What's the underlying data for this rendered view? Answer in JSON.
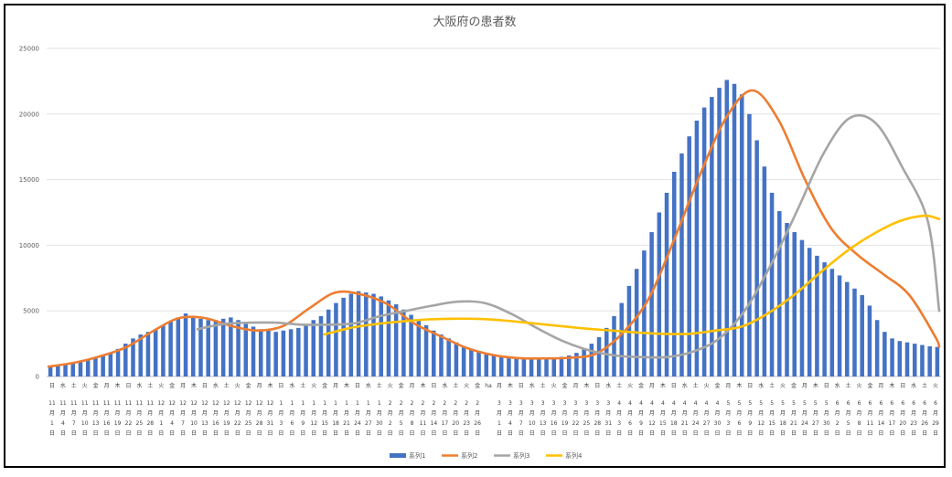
{
  "chart_data": {
    "type": "bar",
    "title": "大阪府の患者数",
    "ylim": [
      0,
      25000
    ],
    "y_ticks": [
      0,
      5000,
      10000,
      15000,
      20000,
      25000
    ],
    "grid": "horizontal",
    "legend_position": "bottom",
    "x_tick_labels": [
      {
        "day": "日",
        "label": "11月1日"
      },
      {
        "day": "水",
        "label": "11月4日"
      },
      {
        "day": "土",
        "label": "11月7日"
      },
      {
        "day": "火",
        "label": "11月10日"
      },
      {
        "day": "金",
        "label": "11月13日"
      },
      {
        "day": "月",
        "label": "11月16日"
      },
      {
        "day": "木",
        "label": "11月19日"
      },
      {
        "day": "日",
        "label": "11月22日"
      },
      {
        "day": "水",
        "label": "11月25日"
      },
      {
        "day": "土",
        "label": "11月28日"
      },
      {
        "day": "火",
        "label": "12月1日"
      },
      {
        "day": "金",
        "label": "12月4日"
      },
      {
        "day": "月",
        "label": "12月7日"
      },
      {
        "day": "木",
        "label": "12月10日"
      },
      {
        "day": "日",
        "label": "12月13日"
      },
      {
        "day": "水",
        "label": "12月16日"
      },
      {
        "day": "土",
        "label": "12月19日"
      },
      {
        "day": "火",
        "label": "12月22日"
      },
      {
        "day": "金",
        "label": "12月25日"
      },
      {
        "day": "月",
        "label": "12月28日"
      },
      {
        "day": "木",
        "label": "12月31日"
      },
      {
        "day": "日",
        "label": "1月3日"
      },
      {
        "day": "水",
        "label": "1月6日"
      },
      {
        "day": "土",
        "label": "1月9日"
      },
      {
        "day": "火",
        "label": "1月12日"
      },
      {
        "day": "金",
        "label": "1月15日"
      },
      {
        "day": "月",
        "label": "1月18日"
      },
      {
        "day": "木",
        "label": "1月21日"
      },
      {
        "day": "日",
        "label": "1月24日"
      },
      {
        "day": "水",
        "label": "1月27日"
      },
      {
        "day": "土",
        "label": "1月30日"
      },
      {
        "day": "火",
        "label": "2月2日"
      },
      {
        "day": "金",
        "label": "2月5日"
      },
      {
        "day": "月",
        "label": "2月8日"
      },
      {
        "day": "木",
        "label": "2月11日"
      },
      {
        "day": "日",
        "label": "2月14日"
      },
      {
        "day": "水",
        "label": "2月17日"
      },
      {
        "day": "土",
        "label": "2月20日"
      },
      {
        "day": "火",
        "label": "2月23日"
      },
      {
        "day": "金",
        "label": "2月26日"
      },
      {
        "day": "ha",
        "label": ""
      },
      {
        "day": "月",
        "label": "3月1日"
      },
      {
        "day": "木",
        "label": "3月4日"
      },
      {
        "day": "日",
        "label": "3月7日"
      },
      {
        "day": "水",
        "label": "3月10日"
      },
      {
        "day": "土",
        "label": "3月13日"
      },
      {
        "day": "火",
        "label": "3月16日"
      },
      {
        "day": "金",
        "label": "3月19日"
      },
      {
        "day": "月",
        "label": "3月22日"
      },
      {
        "day": "木",
        "label": "3月25日"
      },
      {
        "day": "日",
        "label": "3月28日"
      },
      {
        "day": "水",
        "label": "3月31日"
      },
      {
        "day": "土",
        "label": "4月3日"
      },
      {
        "day": "火",
        "label": "4月6日"
      },
      {
        "day": "金",
        "label": "4月9日"
      },
      {
        "day": "月",
        "label": "4月12日"
      },
      {
        "day": "木",
        "label": "4月15日"
      },
      {
        "day": "日",
        "label": "4月18日"
      },
      {
        "day": "水",
        "label": "4月21日"
      },
      {
        "day": "土",
        "label": "4月24日"
      },
      {
        "day": "火",
        "label": "4月27日"
      },
      {
        "day": "金",
        "label": "4月30日"
      },
      {
        "day": "月",
        "label": "5月3日"
      },
      {
        "day": "木",
        "label": "5月6日"
      },
      {
        "day": "日",
        "label": "5月9日"
      },
      {
        "day": "水",
        "label": "5月12日"
      },
      {
        "day": "土",
        "label": "5月15日"
      },
      {
        "day": "火",
        "label": "5月18日"
      },
      {
        "day": "金",
        "label": "5月21日"
      },
      {
        "day": "月",
        "label": "5月24日"
      },
      {
        "day": "木",
        "label": "5月27日"
      },
      {
        "day": "日",
        "label": "5月30日"
      },
      {
        "day": "水",
        "label": "6月2日"
      },
      {
        "day": "土",
        "label": "6月5日"
      },
      {
        "day": "火",
        "label": "6月8日"
      },
      {
        "day": "金",
        "label": "6月11日"
      },
      {
        "day": "月",
        "label": "6月14日"
      },
      {
        "day": "木",
        "label": "6月17日"
      },
      {
        "day": "日",
        "label": "6月20日"
      },
      {
        "day": "水",
        "label": "6月23日"
      },
      {
        "day": "土",
        "label": "6月26日"
      },
      {
        "day": "火",
        "label": "6月29日"
      }
    ],
    "bar_series": {
      "name": "系列1",
      "color": "#4472C4",
      "values": [
        800,
        900,
        1000,
        1050,
        1100,
        1250,
        1400,
        1600,
        1800,
        2100,
        2500,
        2900,
        3200,
        3400,
        3600,
        3900,
        4200,
        4500,
        4800,
        4600,
        4400,
        4300,
        4300,
        4400,
        4500,
        4300,
        4000,
        3800,
        3600,
        3500,
        3400,
        3500,
        3600,
        3700,
        4000,
        4300,
        4600,
        5100,
        5600,
        6000,
        6300,
        6500,
        6400,
        6300,
        6100,
        5800,
        5500,
        5100,
        4700,
        4300,
        3900,
        3500,
        3200,
        2900,
        2600,
        2300,
        2100,
        1900,
        1750,
        1600,
        1500,
        1450,
        1400,
        1380,
        1370,
        1380,
        1400,
        1450,
        1500,
        1600,
        1800,
        2100,
        2500,
        3000,
        3700,
        4600,
        5600,
        6900,
        8200,
        9600,
        11000,
        12500,
        14000,
        15600,
        17000,
        18300,
        19500,
        20500,
        21300,
        22000,
        22600,
        22300,
        21500,
        20000,
        18000,
        16000,
        14000,
        12600,
        11700,
        11000,
        10400,
        9800,
        9200,
        8700,
        8200,
        7700,
        7200,
        6700,
        6200,
        5400,
        4300,
        3400,
        2900,
        2700,
        2600,
        2500,
        2400,
        2300,
        2250
      ]
    },
    "series": [
      {
        "name": "系列2",
        "color": "#ED7D31",
        "x": [
          1,
          8,
          15,
          22,
          29,
          36,
          43,
          50,
          57,
          64,
          71,
          78,
          85,
          92,
          99,
          106,
          113,
          120,
          127,
          134,
          141,
          148,
          155,
          162,
          169,
          176,
          183,
          190,
          197,
          204,
          211,
          218,
          225,
          232,
          239,
          240
        ],
        "values": [
          750,
          1050,
          1550,
          2250,
          3450,
          4450,
          4450,
          3850,
          3500,
          3850,
          5200,
          6400,
          6250,
          5500,
          4050,
          3100,
          2200,
          1650,
          1400,
          1380,
          1430,
          1750,
          3300,
          5900,
          10500,
          15500,
          19800,
          21800,
          19500,
          15000,
          11300,
          9300,
          7800,
          6200,
          3000,
          2250
        ]
      },
      {
        "name": "系列3",
        "color": "#A5A5A5",
        "x": [
          41,
          48,
          55,
          62,
          69,
          76,
          83,
          90,
          97,
          104,
          111,
          118,
          125,
          132,
          139,
          146,
          153,
          160,
          167,
          174,
          181,
          188,
          195,
          202,
          209,
          216,
          223,
          230,
          237,
          240
        ],
        "values": [
          3600,
          4000,
          4100,
          4100,
          3950,
          3950,
          4050,
          4600,
          5000,
          5400,
          5700,
          5600,
          4800,
          3700,
          2700,
          2000,
          1600,
          1480,
          1480,
          1900,
          2900,
          5100,
          8600,
          12700,
          17000,
          19700,
          19300,
          16000,
          11800,
          5000
        ]
      },
      {
        "name": "系列4",
        "color": "#FFC000",
        "x": [
          75,
          82,
          89,
          96,
          103,
          110,
          117,
          124,
          131,
          138,
          145,
          152,
          159,
          166,
          173,
          180,
          187,
          194,
          201,
          208,
          215,
          222,
          229,
          236,
          240
        ],
        "values": [
          3200,
          3700,
          4000,
          4200,
          4350,
          4400,
          4380,
          4250,
          4050,
          3850,
          3650,
          3500,
          3350,
          3250,
          3250,
          3500,
          3800,
          4800,
          6200,
          7900,
          9500,
          10800,
          11800,
          12250,
          12000
        ]
      }
    ],
    "num_days": 240
  }
}
